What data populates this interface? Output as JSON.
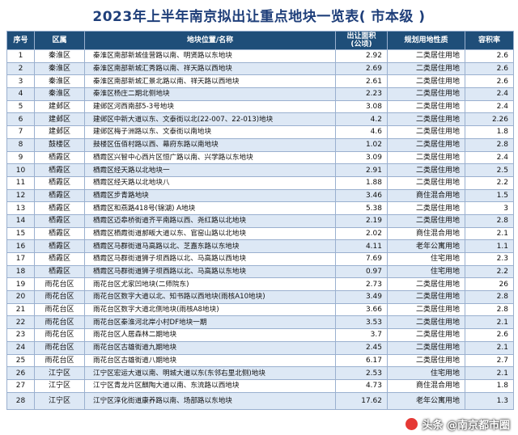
{
  "title": "2023年上半年南京拟出让重点地块一览表( 市本级 )",
  "headers": [
    "序号",
    "区属",
    "地块位置/名称",
    "出让面积\n(公顷)",
    "规划用地性质",
    "容积率"
  ],
  "rows": [
    [
      "1",
      "秦淮区",
      "秦淮区南部新城佳营路以南、明贤路以东地块",
      "2.92",
      "二类居住用地",
      "2.6"
    ],
    [
      "2",
      "秦淮区",
      "秦淮区南部新城汇秀路以南、祥天路以西地块",
      "2.69",
      "二类居住用地",
      "2.6"
    ],
    [
      "3",
      "秦淮区",
      "秦淮区南部新城汇景北路以南、祥天路以西地块",
      "2.61",
      "二类居住用地",
      "2.6"
    ],
    [
      "4",
      "秦淮区",
      "秦淮区杨庄二期北侧地块",
      "2.23",
      "二类居住用地",
      "2.4"
    ],
    [
      "5",
      "建邺区",
      "建邺区河西南部5-3号地块",
      "3.08",
      "二类居住用地",
      "2.4"
    ],
    [
      "6",
      "建邺区",
      "建邺区中新大道以东、文泰街以北(22-007、22-013)地块",
      "4.2",
      "二类居住用地",
      "2.26"
    ],
    [
      "7",
      "建邺区",
      "建邺区梅子洲路以东、文泰街以南地块",
      "4.6",
      "二类居住用地",
      "1.8"
    ],
    [
      "8",
      "鼓楼区",
      "鼓楼区伍佰村路以西、幕府东路以南地块",
      "1.02",
      "二类居住用地",
      "2.8"
    ],
    [
      "9",
      "栖霞区",
      "栖霞区兴智中心西片区恒广路以南、兴学路以东地块",
      "3.09",
      "二类居住用地",
      "2.4"
    ],
    [
      "10",
      "栖霞区",
      "栖霞区经天路以北地块一",
      "2.91",
      "二类居住用地",
      "2.5"
    ],
    [
      "11",
      "栖霞区",
      "栖霞区经天路以北地块八",
      "1.88",
      "二类居住用地",
      "2.2"
    ],
    [
      "12",
      "栖霞区",
      "栖霞区步青路地块",
      "3.46",
      "商住混合用地",
      "1.5"
    ],
    [
      "13",
      "栖霞区",
      "栖霞区和燕路418号(锦湖) A地块",
      "5.38",
      "二类居住用地",
      "3"
    ],
    [
      "14",
      "栖霞区",
      "栖霞区迈皋桥街道齐平南路以西、尧红路以北地块",
      "2.19",
      "二类居住用地",
      "2.8"
    ],
    [
      "15",
      "栖霞区",
      "栖霞区栖霞街道郝畈大道以东、官窑山路以北地块",
      "2.02",
      "商住混合用地",
      "2.1"
    ],
    [
      "16",
      "栖霞区",
      "栖霞区马群街道马高路以北、芝嘉东路以东地块",
      "4.11",
      "老年公寓用地",
      "1.1"
    ],
    [
      "17",
      "栖霞区",
      "栖霞区马群街道狮子坝西路以北、马高路以西地块",
      "7.69",
      "住宅用地",
      "2.3"
    ],
    [
      "18",
      "栖霞区",
      "栖霞区马群街道狮子坝西路以北、马高路以东地块",
      "0.97",
      "住宅用地",
      "2.2"
    ],
    [
      "19",
      "雨花台区",
      "雨花台区尤家凹地块(二师院东)",
      "2.73",
      "二类居住用地",
      "26"
    ],
    [
      "20",
      "雨花台区",
      "雨花台区数字大道以北、知书路以西地块(雨核A10地块)",
      "3.49",
      "二类居住用地",
      "2.8"
    ],
    [
      "21",
      "雨花台区",
      "雨花台区数字大道北侧地块(雨核A8地块)",
      "3.66",
      "二类居住用地",
      "2.8"
    ],
    [
      "22",
      "雨花台区",
      "雨花台区秦淮河北岸小村DF地块一期",
      "3.53",
      "二类居住用地",
      "2.1"
    ],
    [
      "23",
      "雨花台区",
      "雨花台区人居森林二期地块",
      "3.7",
      "二类居住用地",
      "2.6"
    ],
    [
      "24",
      "雨花台区",
      "雨花台区古雄街道九期地块",
      "2.45",
      "二类居住用地",
      "2.1"
    ],
    [
      "25",
      "雨花台区",
      "雨花台区古雄街道八期地块",
      "6.17",
      "二类居住用地",
      "2.7"
    ],
    [
      "26",
      "江宁区",
      "江宁区宏运大道以南、明城大道以东(东邻右里北侧)地块",
      "2.53",
      "住宅用地",
      "2.1"
    ],
    [
      "27",
      "江宁区",
      "江宁区青龙片区麒陶大道以南、东流路以西地块",
      "4.73",
      "商住混合用地",
      "1.8"
    ],
    [
      "28",
      "江宁区",
      "江宁区淳化街道康养路以南、场部路以东地块",
      "17.62",
      "老年公寓用地",
      "1.3"
    ]
  ],
  "watermark": {
    "text": "头条 @南京都市圈",
    "logo_color": "#e53935"
  },
  "colors": {
    "header_bg": "#1f4e79",
    "title": "#1f3f7a",
    "stripe": "#dde8f5"
  }
}
